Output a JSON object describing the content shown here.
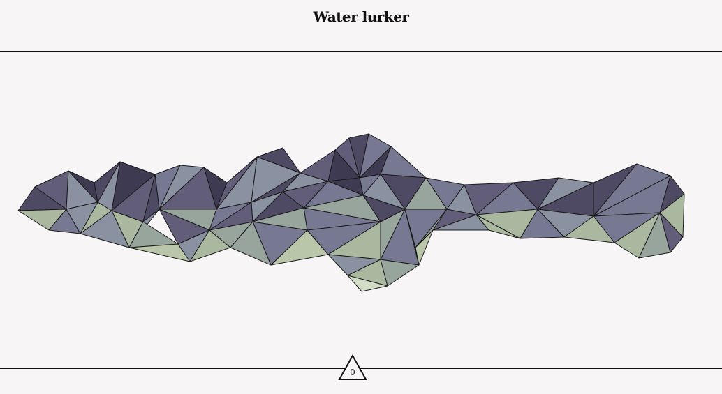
{
  "header": {
    "title": "Water lurker"
  },
  "footer": {
    "counter": "0"
  },
  "palette": {
    "background": "#f7f5f5",
    "rule": "#111111",
    "stroke": "#1a1a1a",
    "fills": [
      "#3e3a52",
      "#4f4a63",
      "#625d78",
      "#777891",
      "#8a91a1",
      "#98a59d",
      "#aab8a0",
      "#b9c6aa",
      "#c9d5bc",
      "#d3dcc6"
    ]
  }
}
